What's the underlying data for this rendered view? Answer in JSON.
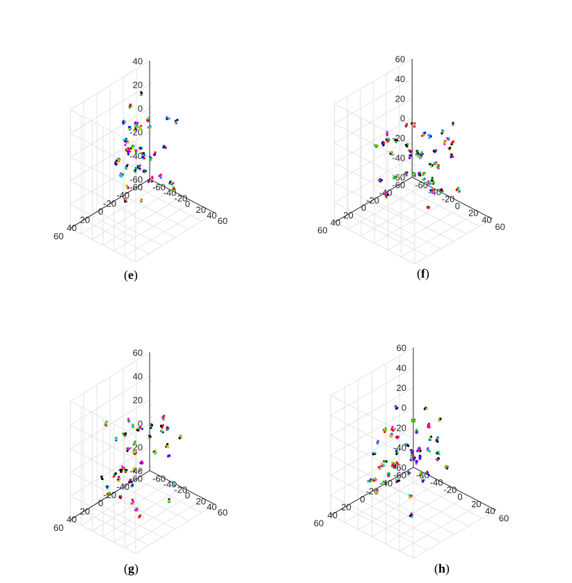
{
  "chart_data": [
    {
      "type": "scatter",
      "dimensions": 3,
      "label_open": "(",
      "label_letter": "e",
      "label_close": ")",
      "xlim": [
        -60,
        60
      ],
      "ylim": [
        -60,
        60
      ],
      "zlim": [
        -60,
        40
      ],
      "x_ticks": [
        "-60",
        "-40",
        "-20",
        "0",
        "20",
        "40",
        "60"
      ],
      "y_ticks": [
        "-60",
        "-40",
        "-20",
        "0",
        "20",
        "40",
        "60"
      ],
      "z_ticks": [
        "-60",
        "-40",
        "-20",
        "0",
        "20",
        "40"
      ],
      "grid": true,
      "cluster_count": 40,
      "seed": 11,
      "z_center": -5
    },
    {
      "type": "scatter",
      "dimensions": 3,
      "label_open": "(",
      "label_letter": "f",
      "label_close": ")",
      "xlim": [
        -60,
        60
      ],
      "ylim": [
        -60,
        60
      ],
      "zlim": [
        -60,
        60
      ],
      "x_ticks": [
        "-60",
        "-40",
        "-20",
        "0",
        "20",
        "40",
        "60"
      ],
      "y_ticks": [
        "-60",
        "-40",
        "-20",
        "0",
        "20",
        "40",
        "60"
      ],
      "z_ticks": [
        "-60",
        "-40",
        "-20",
        "0",
        "20",
        "40",
        "60"
      ],
      "grid": true,
      "cluster_count": 45,
      "seed": 23,
      "z_center": 0
    },
    {
      "type": "scatter",
      "dimensions": 3,
      "label_open": "(",
      "label_letter": "g",
      "label_close": ")",
      "xlim": [
        -60,
        60
      ],
      "ylim": [
        -60,
        60
      ],
      "zlim": [
        -40,
        60
      ],
      "x_ticks": [
        "-60",
        "-40",
        "-20",
        "0",
        "20",
        "40",
        "60"
      ],
      "y_ticks": [
        "-60",
        "-40",
        "-20",
        "0",
        "20",
        "40",
        "60"
      ],
      "z_ticks": [
        "-40",
        "-20",
        "0",
        "20",
        "40",
        "60"
      ],
      "grid": true,
      "cluster_count": 40,
      "seed": 37,
      "z_center": 5
    },
    {
      "type": "scatter",
      "dimensions": 3,
      "label_open": "(",
      "label_letter": "h",
      "label_close": ")",
      "xlim": [
        -60,
        60
      ],
      "ylim": [
        -60,
        60
      ],
      "zlim": [
        -60,
        60
      ],
      "x_ticks": [
        "-60",
        "-40",
        "-20",
        "0",
        "20",
        "40",
        "60"
      ],
      "y_ticks": [
        "-60",
        "-40",
        "-20",
        "0",
        "20",
        "40",
        "60"
      ],
      "z_ticks": [
        "-60",
        "-40",
        "-20",
        "0",
        "20",
        "40",
        "60"
      ],
      "grid": true,
      "cluster_count": 45,
      "seed": 51,
      "z_center": 0
    }
  ],
  "marker_colors": [
    "#ff0000",
    "#00cc00",
    "#0000ff",
    "#ff00ff",
    "#00cccc",
    "#000000",
    "#cccc00"
  ],
  "grid_color": "#e3e3e3",
  "axis_color": "#262626"
}
